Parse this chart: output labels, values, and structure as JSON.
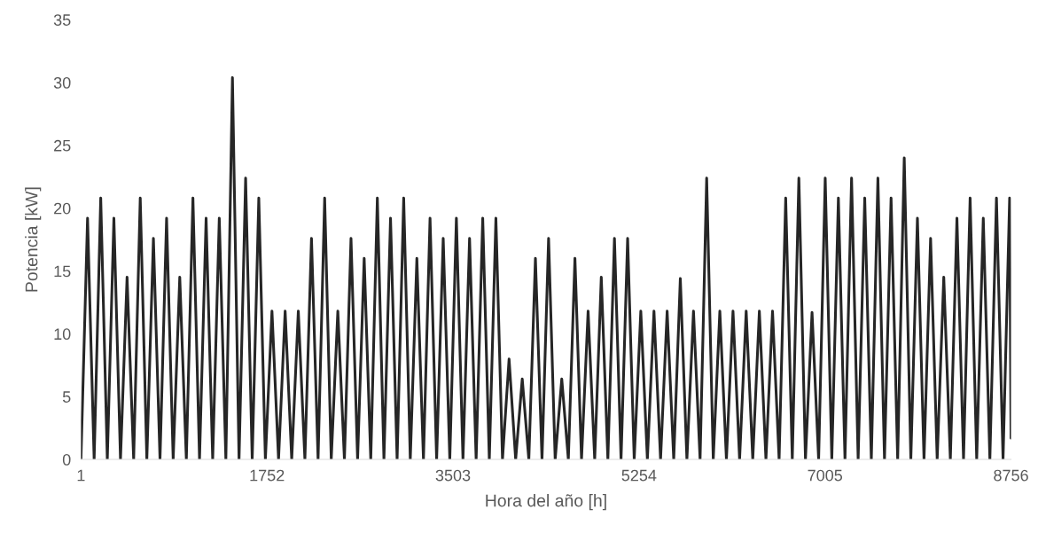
{
  "chart_data": {
    "type": "line",
    "xlabel": "Hora del año [h]",
    "ylabel": "Potencia [kW]",
    "xlim": [
      1,
      8756
    ],
    "xticks": [
      1,
      1752,
      3503,
      5254,
      7005,
      8756
    ],
    "ylim": [
      0,
      35
    ],
    "yticks": [
      0,
      5,
      10,
      15,
      20,
      25,
      30,
      35
    ],
    "grid": false,
    "legend": false,
    "marker": "none",
    "line_style": "solid",
    "series": [
      {
        "color": "#262626",
        "x": [
          1,
          63,
          125,
          187,
          249,
          311,
          373,
          435,
          497,
          559,
          621,
          683,
          745,
          807,
          869,
          931,
          993,
          1055,
          1117,
          1179,
          1241,
          1303,
          1365,
          1427,
          1489,
          1551,
          1613,
          1675,
          1737,
          1799,
          1861,
          1923,
          1985,
          2047,
          2109,
          2171,
          2233,
          2295,
          2357,
          2419,
          2481,
          2543,
          2605,
          2667,
          2729,
          2791,
          2853,
          2915,
          2977,
          3039,
          3101,
          3163,
          3225,
          3287,
          3349,
          3411,
          3473,
          3535,
          3597,
          3659,
          3721,
          3783,
          3845,
          3907,
          3969,
          4031,
          4093,
          4155,
          4217,
          4279,
          4341,
          4403,
          4465,
          4527,
          4589,
          4651,
          4713,
          4775,
          4837,
          4899,
          4961,
          5023,
          5085,
          5147,
          5209,
          5271,
          5333,
          5395,
          5457,
          5519,
          5581,
          5643,
          5705,
          5767,
          5829,
          5891,
          5953,
          6015,
          6077,
          6139,
          6201,
          6263,
          6325,
          6387,
          6449,
          6511,
          6573,
          6635,
          6697,
          6759,
          6821,
          6883,
          6945,
          7007,
          7069,
          7131,
          7193,
          7255,
          7317,
          7379,
          7441,
          7503,
          7565,
          7627,
          7689,
          7751,
          7813,
          7875,
          7937,
          7999,
          8061,
          8123,
          8185,
          8247,
          8309,
          8371,
          8433,
          8495,
          8557,
          8619,
          8681,
          8743,
          8756
        ],
        "values": [
          0,
          19.2,
          0,
          20.8,
          0,
          19.2,
          0,
          14.5,
          0,
          20.8,
          0,
          17.6,
          0,
          19.2,
          0,
          14.5,
          0,
          20.8,
          0,
          19.2,
          0,
          19.2,
          0,
          30.4,
          0,
          22.4,
          0,
          20.8,
          0,
          11.8,
          0,
          11.8,
          0,
          11.8,
          0,
          17.6,
          0,
          20.8,
          0,
          11.8,
          0,
          17.6,
          0,
          16,
          0,
          20.8,
          0,
          19.2,
          0,
          20.8,
          0,
          16,
          0,
          19.2,
          0,
          17.6,
          0,
          19.2,
          0,
          17.6,
          0,
          19.2,
          0,
          19.2,
          0,
          8,
          0,
          6.4,
          0,
          16,
          0,
          17.6,
          0,
          6.4,
          0,
          16,
          0,
          11.8,
          0,
          14.5,
          0,
          17.6,
          0,
          17.6,
          0,
          11.8,
          0,
          11.8,
          0,
          11.8,
          0,
          14.4,
          0,
          11.8,
          0,
          22.4,
          0,
          11.8,
          0,
          11.8,
          0,
          11.8,
          0,
          11.8,
          0,
          11.8,
          0,
          20.8,
          0,
          22.4,
          0,
          11.7,
          0,
          22.4,
          0,
          20.8,
          0,
          22.4,
          0,
          20.8,
          0,
          22.4,
          0,
          20.8,
          0,
          24,
          0,
          19.2,
          0,
          17.6,
          0,
          14.5,
          0,
          19.2,
          0,
          20.8,
          0,
          19.2,
          0,
          20.8,
          0,
          20.8,
          1.7
        ]
      }
    ]
  }
}
